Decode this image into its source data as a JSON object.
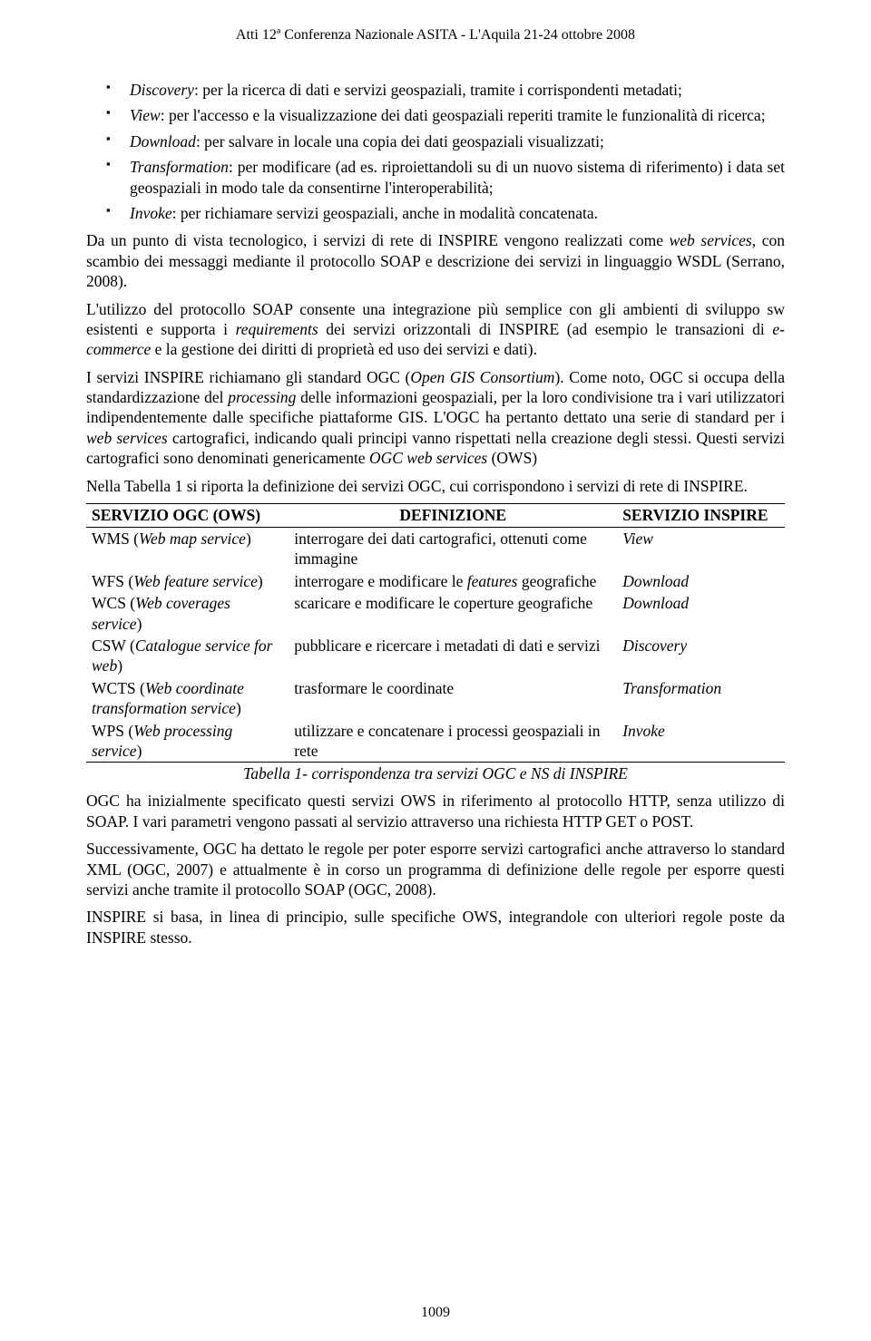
{
  "header": "Atti 12ª Conferenza Nazionale ASITA - L'Aquila 21-24 ottobre 2008",
  "bullets": [
    {
      "term": "Discovery",
      "text": ": per la ricerca di dati e servizi geospaziali, tramite i corrispondenti metadati;"
    },
    {
      "term": "View",
      "text": ": per l'accesso e la visualizzazione dei dati geospaziali reperiti tramite le funzionalità di ricerca;"
    },
    {
      "term": "Download",
      "text": ": per salvare in locale una copia dei dati geospaziali visualizzati;"
    },
    {
      "term": "Transformation",
      "text": ": per modificare (ad es. riproiettandoli su di un nuovo sistema di riferimento) i data set geospaziali in modo tale da consentirne l'interoperabilità;"
    },
    {
      "term": "Invoke",
      "text": ": per richiamare servizi geospaziali, anche in modalità concatenata."
    }
  ],
  "p1_a": "Da un punto di vista tecnologico, i servizi di rete di INSPIRE vengono realizzati come ",
  "p1_b": "web services",
  "p1_c": ", con scambio dei messaggi mediante il protocollo SOAP e descrizione dei servizi in linguaggio WSDL (Serrano, 2008).",
  "p2_a": "L'utilizzo del protocollo SOAP consente una integrazione più semplice con gli ambienti di sviluppo sw esistenti e supporta i ",
  "p2_b": "requirements",
  "p2_c": " dei servizi orizzontali di INSPIRE (ad esempio le transazioni di ",
  "p2_d": "e-commerce",
  "p2_e": " e la gestione dei diritti di proprietà ed uso dei servizi e dati).",
  "p3_a": "I servizi INSPIRE richiamano gli standard OGC (",
  "p3_b": "Open GIS Consortium",
  "p3_c": "). Come noto, OGC si occupa della standardizzazione del ",
  "p3_d": "processing",
  "p3_e": " delle informazioni geospaziali, per la loro condivisione tra i vari utilizzatori indipendentemente dalle specifiche piattaforme GIS. L'OGC ha pertanto dettato una serie di standard per i ",
  "p3_f": "web services",
  "p3_g": " cartografici, indicando quali principi vanno rispettati nella creazione degli stessi. Questi servizi cartografici sono denominati genericamente ",
  "p3_h": "OGC web services",
  "p3_i": " (OWS)",
  "p4": "Nella Tabella 1 si riporta la definizione dei servizi OGC, cui corrispondono i servizi di rete di INSPIRE.",
  "table": {
    "headers": [
      "SERVIZIO OGC (OWS)",
      "DEFINIZIONE",
      "SERVIZIO INSPIRE"
    ],
    "rows": [
      {
        "c1a": "WMS  (",
        "c1b": "Web map service",
        "c1c": ")",
        "c2": "interrogare dei dati cartografici, ottenuti come immagine",
        "c3": "View"
      },
      {
        "c1a": "WFS (",
        "c1b": "Web feature service",
        "c1c": ")",
        "c2a": "interrogare e modificare le ",
        "c2b": "features",
        "c2c": " geografiche",
        "c3": "Download"
      },
      {
        "c1a": "WCS (",
        "c1b": "Web coverages service",
        "c1c": ")",
        "c2": "scaricare e modificare le coperture geografiche",
        "c3": "Download"
      },
      {
        "c1a": "CSW (",
        "c1b": "Catalogue service for web",
        "c1c": ")",
        "c2": "pubblicare e ricercare i metadati di dati e servizi",
        "c3": "Discovery"
      },
      {
        "c1a": "WCTS (",
        "c1b": "Web coordinate transformation service",
        "c1c": ")",
        "c2": "trasformare le coordinate",
        "c3": "Transformation"
      },
      {
        "c1a": "WPS (",
        "c1b": "Web processing service",
        "c1c": ")",
        "c2": "utilizzare e concatenare i processi geospaziali in rete",
        "c3": "Invoke"
      }
    ]
  },
  "caption": "Tabella 1- corrispondenza tra servizi OGC e  NS di INSPIRE",
  "p5": "OGC ha inizialmente specificato questi servizi OWS in riferimento al protocollo HTTP, senza utilizzo di SOAP. I vari parametri vengono passati al servizio attraverso una richiesta HTTP GET o POST.",
  "p6": "Successivamente, OGC ha dettato le regole per poter esporre servizi cartografici anche attraverso lo standard XML (OGC, 2007) e attualmente è in corso un programma di definizione delle regole per esporre questi servizi anche tramite il protocollo SOAP (OGC, 2008).",
  "p7": "INSPIRE si basa, in linea di principio, sulle specifiche OWS, integrandole con ulteriori regole poste da INSPIRE stesso.",
  "pageNum": "1009"
}
